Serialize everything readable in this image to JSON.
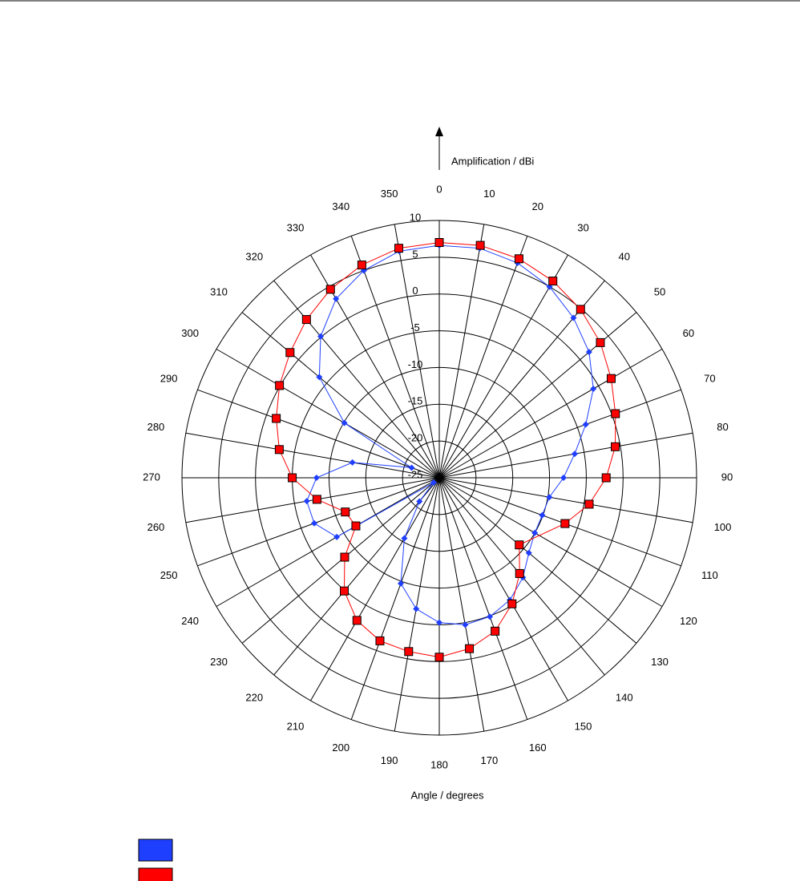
{
  "chart_data": {
    "type": "polar",
    "r_axis_label": "Amplification / dBi",
    "theta_axis_label": "Angle / degrees",
    "rlim": [
      -25,
      10
    ],
    "rticks": [
      -25,
      -20,
      -15,
      -10,
      -5,
      0,
      5,
      10
    ],
    "thetaticks": [
      0,
      10,
      20,
      30,
      40,
      50,
      60,
      70,
      80,
      90,
      100,
      110,
      120,
      130,
      140,
      150,
      160,
      170,
      180,
      190,
      200,
      210,
      220,
      230,
      240,
      250,
      260,
      270,
      280,
      290,
      300,
      310,
      320,
      330,
      340,
      350
    ],
    "series": [
      {
        "color": "#1f3fff",
        "marker": "diamond",
        "x": [
          0,
          10,
          20,
          30,
          40,
          50,
          60,
          70,
          80,
          90,
          100,
          110,
          120,
          130,
          140,
          150,
          160,
          170,
          180,
          190,
          200,
          210,
          220,
          230,
          240,
          250,
          260,
          270,
          280,
          290,
          300,
          310,
          320,
          330,
          340,
          350
        ],
        "values": [
          6.6,
          6.7,
          6.1,
          5.0,
          3.4,
          1.6,
          -0.8,
          -3.8,
          -6.3,
          -8.1,
          -9.8,
          -10.1,
          -10.0,
          -9.1,
          -7.3,
          -5.8,
          -4.9,
          -4.7,
          -5.3,
          -6.9,
          -9.7,
          -15.5,
          -20.8,
          -24.0,
          -8.9,
          -6.9,
          -6.7,
          -8.3,
          -13.0,
          -21.0,
          -10.1,
          -3.7,
          0.1,
          3.1,
          5.0,
          6.3
        ]
      },
      {
        "color": "#ff0000",
        "marker": "square",
        "x": [
          0,
          10,
          20,
          30,
          40,
          50,
          60,
          70,
          80,
          90,
          100,
          110,
          130,
          140,
          150,
          160,
          170,
          180,
          190,
          200,
          210,
          220,
          230,
          240,
          250,
          260,
          270,
          280,
          290,
          300,
          310,
          320,
          330,
          340,
          350
        ],
        "values": [
          7.0,
          7.1,
          6.7,
          5.9,
          4.9,
          3.6,
          2.0,
          0.5,
          -0.7,
          -2.3,
          -4.3,
          -6.8,
          -10.8,
          -8.0,
          -5.2,
          -2.8,
          -1.4,
          -0.6,
          -1.0,
          -1.4,
          -2.6,
          -4.9,
          -8.2,
          -11.9,
          -11.4,
          -8.1,
          -5.0,
          -2.9,
          -1.4,
          0.1,
          1.5,
          3.1,
          4.6,
          5.8,
          6.7
        ]
      }
    ]
  }
}
